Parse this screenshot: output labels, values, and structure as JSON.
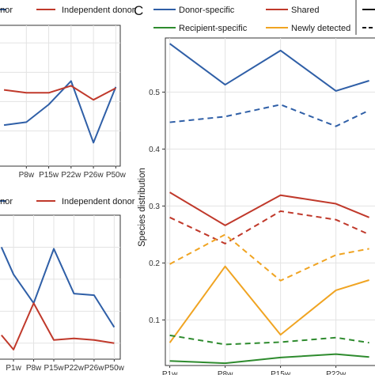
{
  "chart_data": [
    {
      "panel": "top-left (cropped)",
      "type": "line",
      "legend": [
        {
          "name": "onor",
          "color": "#2f5fa7"
        },
        {
          "name": "Independent donor",
          "color": "#c0392b"
        }
      ],
      "categories": [
        "P8w",
        "P15w",
        "P22w",
        "P26w",
        "P50w"
      ],
      "series": [
        {
          "name": "onor",
          "color": "#2f5fa7",
          "x": [
            -1,
            0,
            1,
            2,
            3,
            4
          ],
          "values": [
            1.0,
            1.5,
            4.5,
            8.5,
            -2.0,
            7.5
          ]
        },
        {
          "name": "Independent donor",
          "color": "#c0392b",
          "x": [
            -1,
            0,
            1,
            2,
            3,
            4
          ],
          "values": [
            7.0,
            6.5,
            6.5,
            7.7,
            5.3,
            7.3
          ]
        }
      ],
      "ylim": [
        -6,
        18
      ]
    },
    {
      "panel": "bottom-left (cropped)",
      "type": "line",
      "legend": [
        {
          "name": "onor",
          "color": "#2f5fa7"
        },
        {
          "name": "Independent donor",
          "color": "#c0392b"
        }
      ],
      "categories": [
        "P1w",
        "P8w",
        "P15w",
        "P22w",
        "P26w",
        "P50w"
      ],
      "series": [
        {
          "name": "onor",
          "color": "#2f5fa7",
          "x": [
            -0.6,
            0,
            1,
            2,
            3,
            4,
            5
          ],
          "values": [
            7.0,
            5.3,
            3.5,
            6.9,
            4.1,
            4.0,
            2.0
          ]
        },
        {
          "name": "Independent donor",
          "color": "#c0392b",
          "x": [
            -0.6,
            0,
            1,
            2,
            3,
            4,
            5
          ],
          "values": [
            1.5,
            0.6,
            3.5,
            1.2,
            1.3,
            1.2,
            1.0
          ]
        }
      ],
      "ylim": [
        0,
        9
      ]
    },
    {
      "panel": "C",
      "type": "line",
      "ylabel": "Species distribution",
      "legend_entries": [
        {
          "name": "Donor-specific",
          "color": "#2f5fa7"
        },
        {
          "name": "Shared",
          "color": "#c0392b"
        },
        {
          "name": "Recipient-specific",
          "color": "#2e8b2e"
        },
        {
          "name": "Newly detected",
          "color": "#f0a422"
        }
      ],
      "categories": [
        "P1w",
        "P8w",
        "P15w",
        "P22w",
        "P"
      ],
      "x": [
        0,
        1,
        2,
        3,
        3.6
      ],
      "series": [
        {
          "name": "Donor-specific",
          "color": "#2f5fa7",
          "dash": false,
          "values": [
            0.585,
            0.513,
            0.573,
            0.502,
            0.52
          ]
        },
        {
          "name": "Donor-specific",
          "color": "#2f5fa7",
          "dash": true,
          "values": [
            0.447,
            0.457,
            0.478,
            0.44,
            0.468
          ]
        },
        {
          "name": "Shared",
          "color": "#c0392b",
          "dash": false,
          "values": [
            0.324,
            0.266,
            0.319,
            0.304,
            0.28
          ]
        },
        {
          "name": "Shared",
          "color": "#c0392b",
          "dash": true,
          "values": [
            0.28,
            0.234,
            0.291,
            0.276,
            0.25
          ]
        },
        {
          "name": "Newly detected",
          "color": "#f0a422",
          "dash": true,
          "values": [
            0.198,
            0.25,
            0.169,
            0.214,
            0.225
          ]
        },
        {
          "name": "Newly detected",
          "color": "#f0a422",
          "dash": false,
          "values": [
            0.06,
            0.194,
            0.074,
            0.152,
            0.17
          ]
        },
        {
          "name": "Recipient-specific",
          "color": "#2e8b2e",
          "dash": true,
          "values": [
            0.073,
            0.057,
            0.061,
            0.069,
            0.06
          ]
        },
        {
          "name": "Recipient-specific",
          "color": "#2e8b2e",
          "dash": false,
          "values": [
            0.028,
            0.024,
            0.034,
            0.04,
            0.035
          ]
        }
      ],
      "yticks": [
        0.1,
        0.2,
        0.3,
        0.4,
        0.5
      ],
      "ylim": [
        0.02,
        0.595
      ]
    }
  ],
  "panel_label": "C"
}
